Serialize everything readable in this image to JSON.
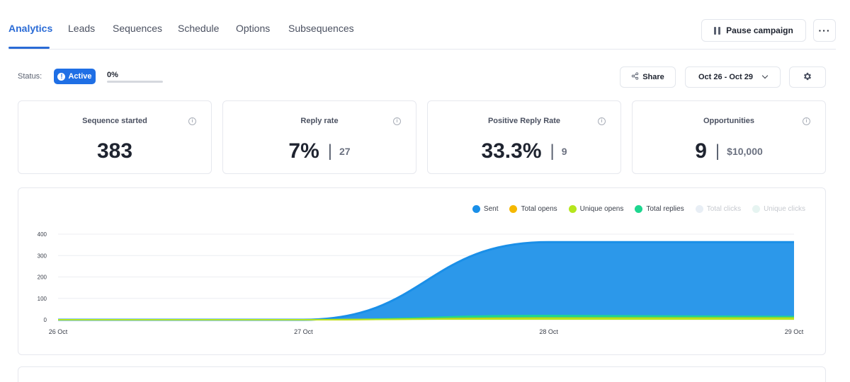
{
  "tabs": [
    {
      "label": "Analytics",
      "active": true
    },
    {
      "label": "Leads"
    },
    {
      "label": "Sequences"
    },
    {
      "label": "Schedule"
    },
    {
      "label": "Options"
    },
    {
      "label": "Subsequences"
    }
  ],
  "header": {
    "pause_label": "Pause campaign",
    "more_label": "···"
  },
  "status": {
    "label": "Status:",
    "badge": "Active",
    "progress_text": "0%",
    "progress": 0
  },
  "toolbar": {
    "share_label": "Share",
    "date_range": "Oct 26 - Oct 29"
  },
  "cards": [
    {
      "title": "Sequence started",
      "value": "383",
      "sub": ""
    },
    {
      "title": "Reply rate",
      "value": "7%",
      "sub": "27"
    },
    {
      "title": "Positive Reply Rate",
      "value": "33.3%",
      "sub": "9"
    },
    {
      "title": "Opportunities",
      "value": "9",
      "sub": "$10,000"
    }
  ],
  "colors": {
    "accent": "#2a6bd6",
    "sent": "#1a8fe8",
    "total_opens": "#f5b800",
    "unique_opens": "#b5e61d",
    "total_replies": "#1ed68f",
    "total_clicks": "#e8eef5",
    "unique_clicks": "#e6f4f1"
  },
  "chart_data": {
    "type": "area",
    "x": [
      "26 Oct",
      "27 Oct",
      "28 Oct",
      "29 Oct"
    ],
    "ylim": [
      0,
      400
    ],
    "yticks": [
      0,
      100,
      200,
      300,
      400
    ],
    "grid": true,
    "legend_position": "top-right",
    "series": [
      {
        "name": "Sent",
        "values": [
          0,
          0,
          363,
          363
        ],
        "color": "#1a8fe8"
      },
      {
        "name": "Total opens",
        "values": [
          0,
          0,
          8,
          8
        ],
        "color": "#f5b800"
      },
      {
        "name": "Unique opens",
        "values": [
          0,
          0,
          6,
          6
        ],
        "color": "#b5e61d"
      },
      {
        "name": "Total replies",
        "values": [
          0,
          0,
          20,
          15
        ],
        "color": "#1ed68f"
      },
      {
        "name": "Total clicks",
        "values": [
          0,
          0,
          0,
          0
        ],
        "color": "#e8eef5",
        "faded": true
      },
      {
        "name": "Unique clicks",
        "values": [
          0,
          0,
          0,
          0
        ],
        "color": "#e6f4f1",
        "faded": true
      }
    ]
  }
}
